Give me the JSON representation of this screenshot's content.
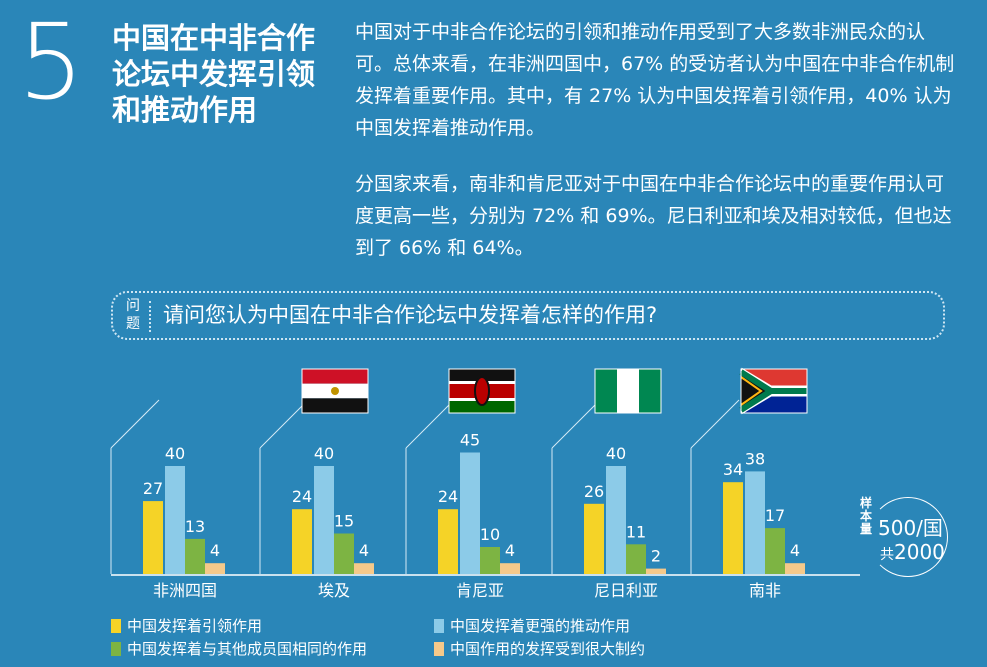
{
  "section": {
    "number": "5",
    "title": "中国在中非合作论坛中发挥引领和推动作用"
  },
  "paragraphs": [
    "中国对于中非合作论坛的引领和推动作用受到了大多数非洲民众的认可。总体来看，在非洲四国中，67% 的受访者认为中国在中非合作机制发挥着重要作用。其中，有 27% 认为中国发挥着引领作用，40% 认为中国发挥着推动作用。",
    "分国家来看，南非和肯尼亚对于中国在中非合作论坛中的重要作用认可度更高一些，分别为 72% 和 69%。尼日利亚和埃及相对较低，但也达到了 66% 和 64%。"
  ],
  "question": {
    "label": "问题",
    "text": "请问您认为中国在中非合作论坛中发挥着怎样的作用?"
  },
  "sample": {
    "label": "样本量",
    "per_country": "500/",
    "per_country_unit": "国",
    "total_prefix": "共",
    "total": "2000"
  },
  "chart_data": {
    "type": "bar",
    "categories": [
      "非洲四国",
      "埃及",
      "肯尼亚",
      "尼日利亚",
      "南非"
    ],
    "flags": [
      "",
      "egypt-flag",
      "kenya-flag",
      "nigeria-flag",
      "south-africa-flag"
    ],
    "series": [
      {
        "name": "中国发挥着引领作用",
        "color": "#f5d327",
        "values": [
          27,
          24,
          24,
          26,
          34
        ]
      },
      {
        "name": "中国发挥着更强的推动作用",
        "color": "#8ccbe8",
        "values": [
          40,
          40,
          45,
          40,
          38
        ]
      },
      {
        "name": "中国发挥着与其他成员国相同的作用",
        "color": "#7db443",
        "values": [
          13,
          15,
          10,
          11,
          17
        ]
      },
      {
        "name": "中国作用的发挥受到很大制约",
        "color": "#f5c98a",
        "values": [
          4,
          4,
          4,
          2,
          4
        ]
      }
    ],
    "ylim": [
      0,
      50
    ],
    "legend_position": "bottom"
  }
}
